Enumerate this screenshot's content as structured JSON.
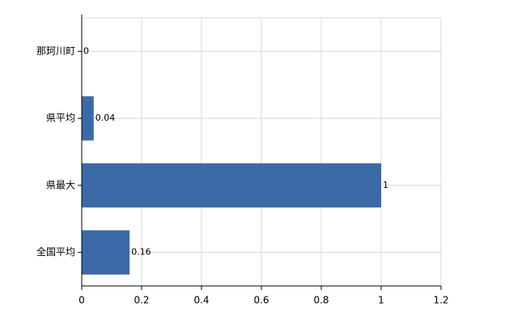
{
  "chart_data": {
    "type": "bar",
    "orientation": "horizontal",
    "categories": [
      "那珂川町",
      "県平均",
      "県最大",
      "全国平均"
    ],
    "values": [
      0,
      0.04,
      1,
      0.16
    ],
    "color": "#3b6aa8",
    "xlim": [
      0,
      1.2
    ],
    "xticks": [
      0,
      0.2,
      0.4,
      0.6,
      0.8,
      1,
      1.2
    ],
    "grid": true
  }
}
